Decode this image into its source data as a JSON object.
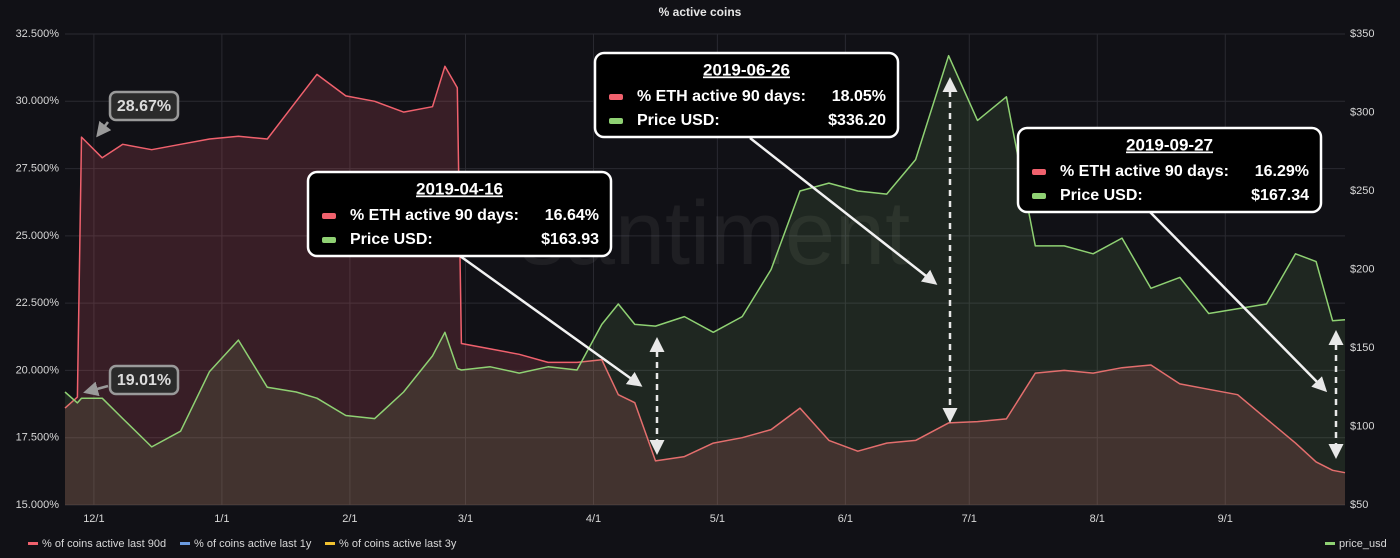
{
  "chart_data": {
    "type": "line",
    "title": "% active coins",
    "watermark": "santiment",
    "x": [
      "11/24",
      "11/27",
      "11/28",
      "12/3",
      "12/8",
      "12/15",
      "12/22",
      "12/29",
      "1/5",
      "1/12",
      "1/19",
      "1/24",
      "1/31",
      "2/7",
      "2/14",
      "2/21",
      "2/24",
      "2/27",
      "2/28",
      "3/7",
      "3/14",
      "3/21",
      "3/28",
      "4/3",
      "4/7",
      "4/11",
      "4/16",
      "4/23",
      "4/30",
      "5/7",
      "5/14",
      "5/21",
      "5/28",
      "6/4",
      "6/11",
      "6/18",
      "6/26",
      "7/3",
      "7/10",
      "7/17",
      "7/24",
      "7/31",
      "8/7",
      "8/14",
      "8/21",
      "8/28",
      "9/4",
      "9/11",
      "9/18",
      "9/23",
      "9/27",
      "9/30"
    ],
    "xlim": [
      "11/24",
      "9/30"
    ],
    "xticks": [
      "12/1",
      "1/1",
      "2/1",
      "3/1",
      "4/1",
      "5/1",
      "6/1",
      "7/1",
      "8/1",
      "9/1"
    ],
    "ylim": [
      15,
      32.5
    ],
    "yticks": [
      {
        "value": 15,
        "label": "15.000%"
      },
      {
        "value": 17.5,
        "label": "17.500%"
      },
      {
        "value": 20,
        "label": "20.000%"
      },
      {
        "value": 22.5,
        "label": "22.500%"
      },
      {
        "value": 25,
        "label": "25.000%"
      },
      {
        "value": 27.5,
        "label": "27.500%"
      },
      {
        "value": 30,
        "label": "30.000%"
      },
      {
        "value": 32.5,
        "label": "32.500%"
      }
    ],
    "y2lim": [
      50,
      350
    ],
    "y2ticks": [
      {
        "value": 50,
        "label": "$50"
      },
      {
        "value": 100,
        "label": "$100"
      },
      {
        "value": 150,
        "label": "$150"
      },
      {
        "value": 200,
        "label": "$200"
      },
      {
        "value": 250,
        "label": "$250"
      },
      {
        "value": 300,
        "label": "$300"
      },
      {
        "value": 350,
        "label": "$350"
      }
    ],
    "grid": true,
    "series": [
      {
        "name": "% of coins active last 90d",
        "color": "#f0616d",
        "values": [
          18.6,
          19.01,
          28.67,
          27.9,
          28.4,
          28.2,
          28.4,
          28.6,
          28.7,
          28.6,
          30.0,
          31.0,
          30.2,
          30.0,
          29.6,
          29.8,
          31.3,
          30.5,
          21.0,
          20.8,
          20.6,
          20.3,
          20.3,
          20.4,
          19.1,
          18.8,
          16.64,
          16.8,
          17.3,
          17.5,
          17.8,
          18.6,
          17.4,
          17.0,
          17.3,
          17.4,
          18.05,
          18.1,
          18.2,
          19.9,
          20.0,
          19.9,
          20.1,
          20.2,
          19.5,
          19.3,
          19.1,
          18.2,
          17.3,
          16.6,
          16.29,
          16.2
        ]
      },
      {
        "name": "% of coins active last 1y",
        "color": "#6b9be0",
        "values": [
          null,
          null,
          null,
          null,
          null,
          null,
          null,
          null,
          null,
          null,
          null,
          null,
          null,
          null,
          null,
          null,
          null,
          null,
          null,
          null,
          null,
          null,
          null,
          null,
          null,
          null,
          null,
          null,
          null,
          null,
          null,
          null,
          null,
          null,
          null,
          null,
          null,
          null,
          null,
          null,
          null,
          null,
          null,
          null,
          null,
          null,
          null,
          null,
          null,
          null,
          null,
          null
        ]
      },
      {
        "name": "% of coins active last 3y",
        "color": "#f2c230",
        "values": [
          null,
          null,
          null,
          null,
          null,
          null,
          null,
          null,
          null,
          null,
          null,
          null,
          null,
          null,
          null,
          null,
          null,
          null,
          null,
          null,
          null,
          null,
          null,
          null,
          null,
          null,
          null,
          null,
          null,
          null,
          null,
          null,
          null,
          null,
          null,
          null,
          null,
          null,
          null,
          null,
          null,
          null,
          null,
          null,
          null,
          null,
          null,
          null,
          null,
          null,
          null,
          null
        ]
      },
      {
        "name": "price_usd",
        "color": "#8fd173",
        "axis": "y2",
        "values": [
          122,
          115,
          118,
          118,
          105,
          87,
          97,
          135,
          155,
          125,
          122,
          118,
          107,
          105,
          122,
          145,
          160,
          137,
          136,
          138,
          134,
          138,
          136,
          165,
          178,
          165,
          163.93,
          170,
          160,
          170,
          200,
          250,
          255,
          250,
          248,
          270,
          336.2,
          295,
          310,
          215,
          215,
          210,
          220,
          188,
          195,
          172,
          175,
          178,
          210,
          205,
          167.34,
          168
        ]
      }
    ],
    "point_labels": [
      "28.67%",
      "19.01%"
    ],
    "callouts": [
      {
        "date": "2019-04-16",
        "lines": [
          {
            "label": "% ETH active 90 days:",
            "text": "16.64%"
          },
          {
            "label": "Price USD:",
            "text": "$163.93"
          }
        ]
      },
      {
        "date": "2019-06-26",
        "lines": [
          {
            "label": "% ETH active 90 days:",
            "text": "18.05%"
          },
          {
            "label": "Price USD:",
            "text": "$336.20"
          }
        ]
      },
      {
        "date": "2019-09-27",
        "lines": [
          {
            "label": "% ETH active 90 days:",
            "text": "16.29%"
          },
          {
            "label": "Price USD:",
            "text": "$167.34"
          }
        ]
      }
    ]
  }
}
